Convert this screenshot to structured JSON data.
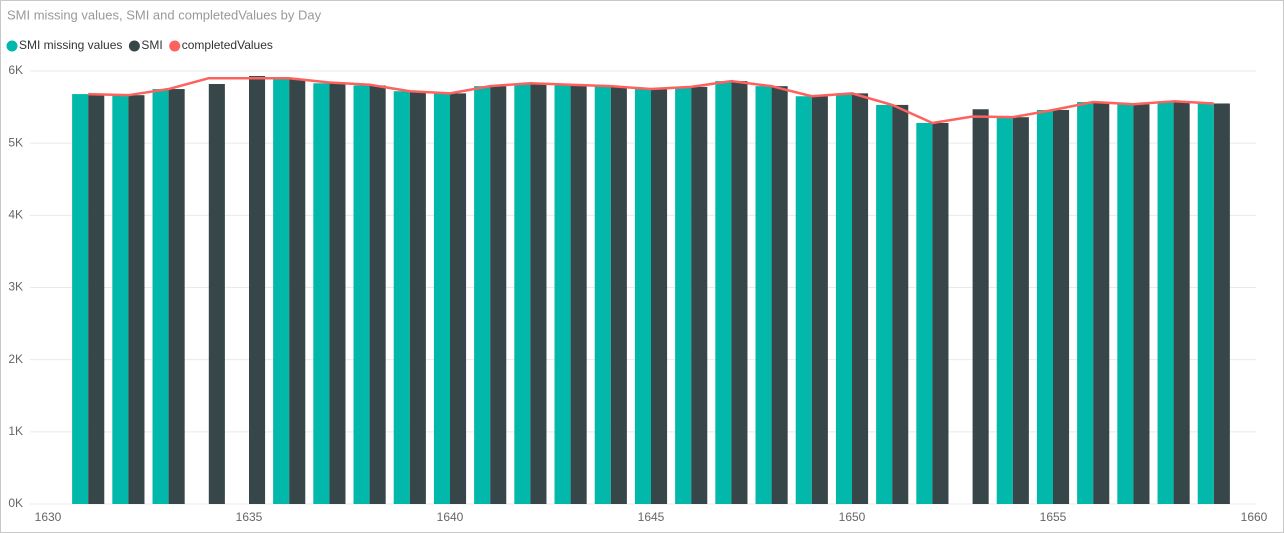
{
  "chart_data": {
    "type": "combo",
    "title": "SMI missing values, SMI and completedValues by Day",
    "x": [
      1631,
      1632,
      1633,
      1634,
      1635,
      1636,
      1637,
      1638,
      1639,
      1640,
      1641,
      1642,
      1643,
      1644,
      1645,
      1646,
      1647,
      1648,
      1649,
      1650,
      1651,
      1652,
      1653,
      1654,
      1655,
      1656,
      1657,
      1658,
      1659
    ],
    "series": [
      {
        "name": "SMI missing values",
        "type": "bar",
        "color": "#01b8aa",
        "values": [
          5680,
          5665,
          5750,
          null,
          null,
          5890,
          5830,
          5800,
          5720,
          5690,
          5790,
          5820,
          5800,
          5790,
          5750,
          5780,
          5860,
          5790,
          5650,
          5690,
          5530,
          5280,
          null,
          5360,
          5460,
          5570,
          5540,
          5580,
          5550
        ]
      },
      {
        "name": "SMI",
        "type": "bar",
        "color": "#374649",
        "values": [
          5680,
          5665,
          5750,
          5820,
          5930,
          5890,
          5830,
          5800,
          5720,
          5690,
          5790,
          5820,
          5800,
          5790,
          5750,
          5780,
          5860,
          5790,
          5650,
          5690,
          5530,
          5280,
          5470,
          5360,
          5460,
          5570,
          5540,
          5580,
          5550
        ]
      },
      {
        "name": "completedValues",
        "type": "line",
        "color": "#fd625e",
        "values": [
          5680,
          5665,
          5750,
          5900,
          5900,
          5900,
          5840,
          5810,
          5720,
          5690,
          5790,
          5830,
          5810,
          5790,
          5750,
          5780,
          5860,
          5790,
          5650,
          5690,
          5530,
          5280,
          5370,
          5360,
          5460,
          5570,
          5540,
          5580,
          5550
        ]
      }
    ],
    "xlim": [
      1630,
      1660
    ],
    "xticks": [
      1630,
      1635,
      1640,
      1645,
      1650,
      1655,
      1660
    ],
    "ylim": [
      0,
      6000
    ],
    "yticks": [
      {
        "value": 0,
        "label": "0K"
      },
      {
        "value": 1000,
        "label": "1K"
      },
      {
        "value": 2000,
        "label": "2K"
      },
      {
        "value": 3000,
        "label": "3K"
      },
      {
        "value": 4000,
        "label": "4K"
      },
      {
        "value": 5000,
        "label": "5K"
      },
      {
        "value": 6000,
        "label": "6K"
      }
    ],
    "grid": true,
    "legend": "top-left"
  }
}
